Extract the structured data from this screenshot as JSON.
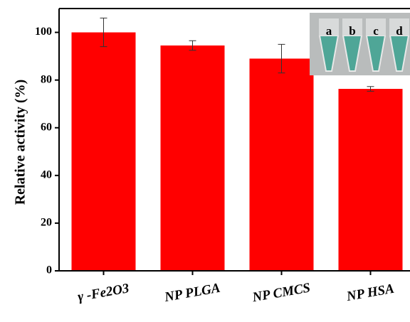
{
  "chart_data": {
    "type": "bar",
    "y_label": "Relative activity (%)",
    "categories": [
      "γ -Fe2O3",
      "NP PLGA",
      "NP CMCS",
      "NP HSA"
    ],
    "series": [
      {
        "color": "#ff0000",
        "values": [
          100,
          94.5,
          89,
          76.3
        ],
        "errors": [
          6,
          2,
          6,
          1
        ]
      }
    ],
    "ylim": [
      0,
      110
    ],
    "yticks": [
      0,
      20,
      40,
      60,
      80,
      100
    ],
    "inset_labels": [
      "a",
      "b",
      "c",
      "d"
    ]
  }
}
